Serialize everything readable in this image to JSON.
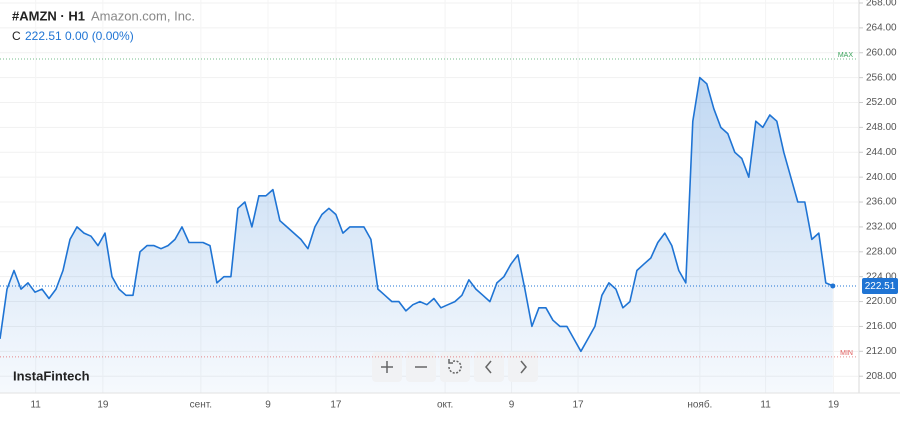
{
  "chart_data": {
    "type": "area",
    "symbol": "#AMZN · H1",
    "company": "Amazon.com, Inc.",
    "close_prefix": "C",
    "close": 222.51,
    "change": "0.00 (0.00%)",
    "watermark": "InstaFintech",
    "color": "#1f74d4",
    "max_line": {
      "label": "MAX",
      "value": 259.0
    },
    "min_line": {
      "label": "MIN",
      "value": 211.1
    },
    "ylim": [
      205.3,
      268.48
    ],
    "yticks": [
      {
        "value": 208,
        "label": "208.00"
      },
      {
        "value": 212,
        "label": "212.00"
      },
      {
        "value": 216,
        "label": "216.00"
      },
      {
        "value": 220,
        "label": "220.00"
      },
      {
        "value": 224,
        "label": "224.00"
      },
      {
        "value": 228,
        "label": "228.00"
      },
      {
        "value": 232,
        "label": "232.00"
      },
      {
        "value": 236,
        "label": "236.00"
      },
      {
        "value": 240,
        "label": "240.00"
      },
      {
        "value": 244,
        "label": "244.00"
      },
      {
        "value": 248,
        "label": "248.00"
      },
      {
        "value": 252,
        "label": "252.00"
      },
      {
        "value": 256,
        "label": "256.00"
      },
      {
        "value": 260,
        "label": "260.00"
      },
      {
        "value": 264,
        "label": "264.00"
      },
      {
        "value": 268,
        "label": "268.00"
      }
    ],
    "xlim": [
      0,
      122.6
    ],
    "xticks": [
      {
        "value": 5.1,
        "label": "11"
      },
      {
        "value": 14.7,
        "label": "19"
      },
      {
        "value": 28.7,
        "label": "сент."
      },
      {
        "value": 38.3,
        "label": "9"
      },
      {
        "value": 48,
        "label": "17"
      },
      {
        "value": 63.6,
        "label": "окт."
      },
      {
        "value": 73.1,
        "label": "9"
      },
      {
        "value": 82.6,
        "label": "17"
      },
      {
        "value": 100,
        "label": "нояб."
      },
      {
        "value": 109.4,
        "label": "11"
      },
      {
        "value": 119.1,
        "label": "19"
      }
    ],
    "values": [
      214,
      222,
      225,
      222,
      223,
      221.5,
      222,
      220.5,
      222,
      225,
      230,
      232,
      231,
      230.5,
      229,
      231,
      224,
      222,
      221,
      221,
      228,
      229,
      229,
      228.5,
      229,
      230,
      232,
      229.5,
      229.5,
      229.5,
      229,
      223,
      224,
      224,
      235,
      236,
      232,
      237,
      237,
      238,
      233,
      232,
      231,
      230,
      228.5,
      232,
      234,
      235,
      234,
      231,
      232,
      232,
      232,
      230,
      222,
      221,
      220,
      220,
      218.5,
      219.5,
      220,
      219.5,
      220.5,
      219,
      219.5,
      220,
      221,
      223.5,
      222,
      221,
      220,
      223,
      224,
      226,
      227.5,
      222,
      216,
      219,
      219,
      217,
      216,
      216,
      214,
      212,
      214,
      216,
      221,
      223,
      222,
      219,
      220,
      225,
      226,
      227,
      229.5,
      231,
      229,
      225,
      223,
      249,
      256,
      255,
      251,
      248,
      247,
      244,
      243,
      240,
      249,
      248,
      250,
      249,
      244,
      240,
      236,
      236,
      230,
      231,
      223,
      222.51
    ]
  }
}
